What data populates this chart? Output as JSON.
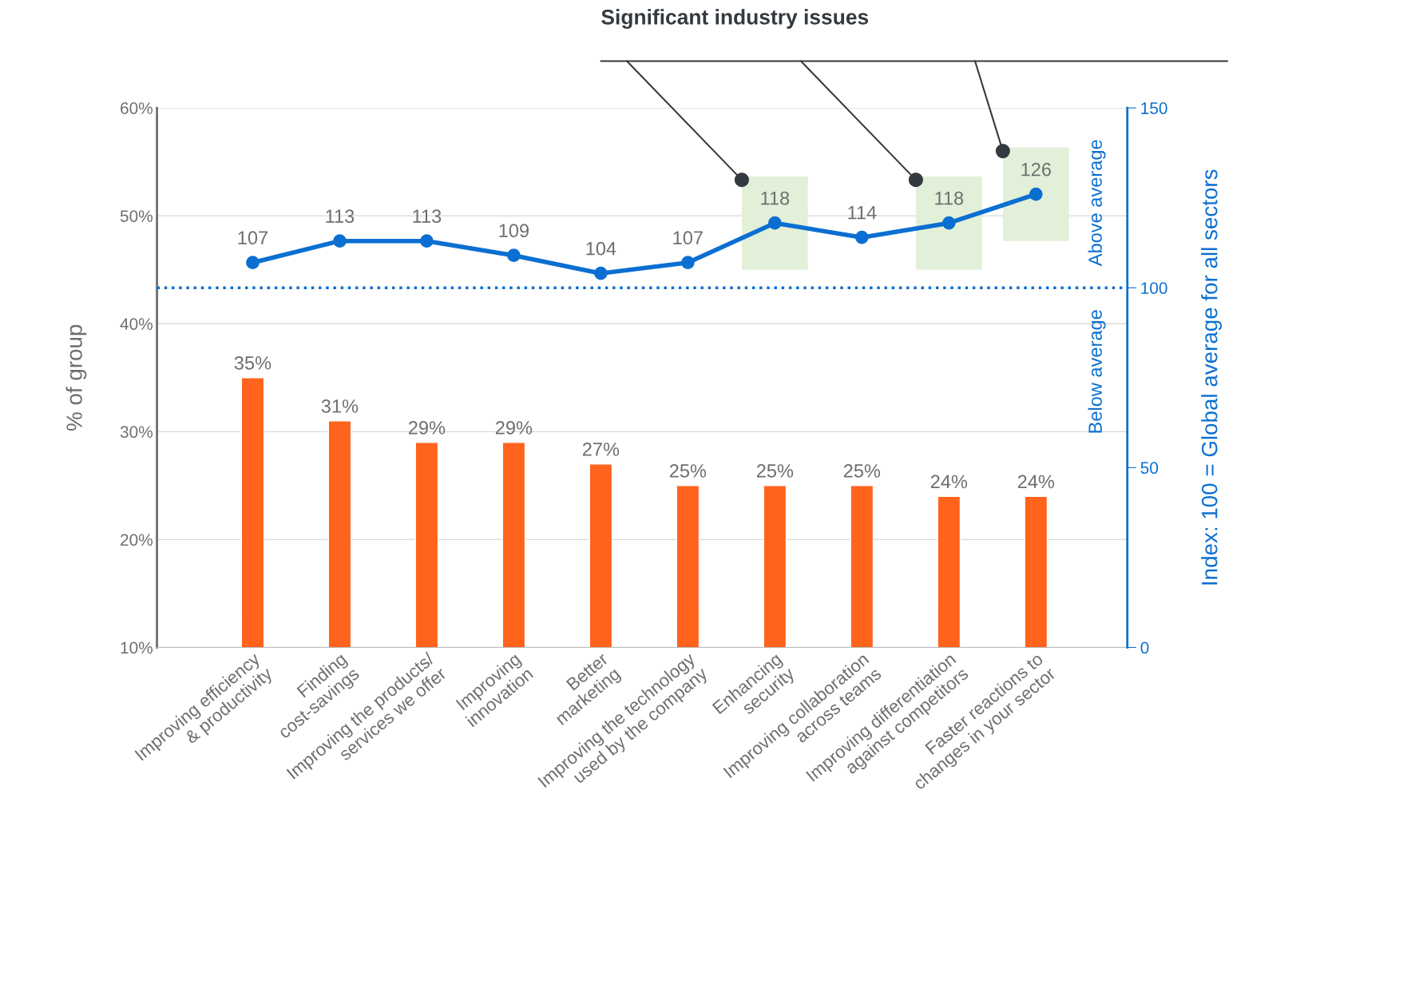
{
  "chart_data": {
    "type": "bar",
    "ylabel": "% of group",
    "y2label": "Index: 100 = Global average for all sectors",
    "categories": [
      "Improving efficiency\n& productivity",
      "Finding\ncost-savings",
      "Improving the products/\nservices we offer",
      "Improving\ninnovation",
      "Better\nmarketing",
      "Improving the technology\nused by the company",
      "Enhancing\nsecurity",
      "Improving collaboration\nacross teams",
      "Improving differentiation\nagainst competitors",
      "Faster reactions to\nchanges in your sector"
    ],
    "series": [
      {
        "color": "#ff631c",
        "values": [
          35,
          31,
          29,
          29,
          27,
          25,
          25,
          25,
          24,
          24
        ],
        "value_labels": [
          "35%",
          "31%",
          "29%",
          "29%",
          "27%",
          "25%",
          "25%",
          "25%",
          "24%",
          "24%"
        ]
      },
      {
        "type": "line",
        "axis": "y2",
        "color": "#0b6fd1",
        "marker": "circle",
        "line_style": "solid",
        "values": [
          107,
          113,
          113,
          109,
          104,
          107,
          118,
          114,
          118,
          126
        ],
        "value_labels": [
          "107",
          "113",
          "113",
          "109",
          "104",
          "107",
          "118",
          "114",
          "118",
          "126"
        ]
      }
    ],
    "ylim": [
      10,
      60
    ],
    "yticks": [
      {
        "value": 10,
        "label": "10%"
      },
      {
        "value": 20,
        "label": "20%"
      },
      {
        "value": 30,
        "label": "30%"
      },
      {
        "value": 40,
        "label": "40%"
      },
      {
        "value": 50,
        "label": "50%"
      },
      {
        "value": 60,
        "label": "60%"
      }
    ],
    "y2lim": [
      0,
      150
    ],
    "y2ticks": [
      0,
      50,
      100,
      150
    ],
    "ref_lines": [
      {
        "axis": "y2",
        "value": 100,
        "color": "#0b6fd1",
        "line_style": "dotted"
      }
    ],
    "annotations": [
      "Above average",
      "Below average",
      "Significant industry issues"
    ],
    "grid": "y",
    "legend": false
  }
}
